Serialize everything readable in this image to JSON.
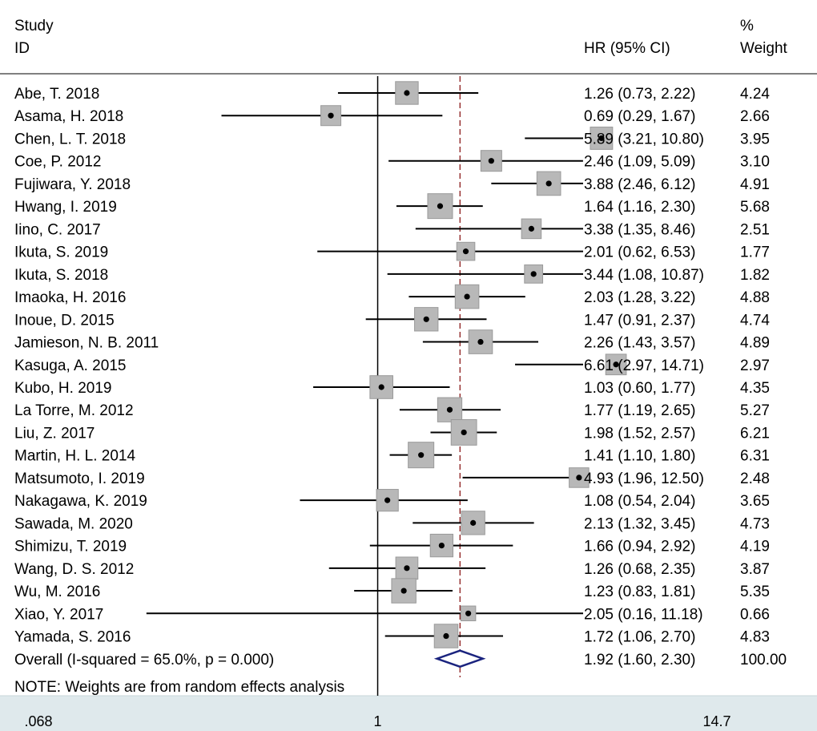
{
  "chart_data": {
    "type": "forest",
    "header": {
      "study_line1": "Study",
      "study_line2": "ID",
      "effect": "HR (95% CI)",
      "weight_line1": "%",
      "weight_line2": "Weight"
    },
    "studies": [
      {
        "id": "Abe, T. 2018",
        "hr": 1.26,
        "lo": 0.73,
        "hi": 2.22,
        "ci_text": "1.26 (0.73, 2.22)",
        "weight": "4.24"
      },
      {
        "id": "Asama, H. 2018",
        "hr": 0.69,
        "lo": 0.29,
        "hi": 1.67,
        "ci_text": "0.69 (0.29, 1.67)",
        "weight": "2.66"
      },
      {
        "id": "Chen, L. T. 2018",
        "hr": 5.89,
        "lo": 3.21,
        "hi": 10.8,
        "ci_text": "5.89 (3.21, 10.80)",
        "weight": "3.95"
      },
      {
        "id": "Coe, P. 2012",
        "hr": 2.46,
        "lo": 1.09,
        "hi": 5.09,
        "ci_text": "2.46 (1.09, 5.09)",
        "weight": "3.10"
      },
      {
        "id": "Fujiwara, Y. 2018",
        "hr": 3.88,
        "lo": 2.46,
        "hi": 6.12,
        "ci_text": "3.88 (2.46, 6.12)",
        "weight": "4.91"
      },
      {
        "id": "Hwang, I. 2019",
        "hr": 1.64,
        "lo": 1.16,
        "hi": 2.3,
        "ci_text": "1.64 (1.16, 2.30)",
        "weight": "5.68"
      },
      {
        "id": "Iino, C. 2017",
        "hr": 3.38,
        "lo": 1.35,
        "hi": 8.46,
        "ci_text": "3.38 (1.35, 8.46)",
        "weight": "2.51"
      },
      {
        "id": "Ikuta, S. 2019",
        "hr": 2.01,
        "lo": 0.62,
        "hi": 6.53,
        "ci_text": "2.01 (0.62, 6.53)",
        "weight": "1.77"
      },
      {
        "id": "Ikuta, S. 2018",
        "hr": 3.44,
        "lo": 1.08,
        "hi": 10.87,
        "ci_text": "3.44 (1.08, 10.87)",
        "weight": "1.82"
      },
      {
        "id": "Imaoka, H. 2016",
        "hr": 2.03,
        "lo": 1.28,
        "hi": 3.22,
        "ci_text": "2.03 (1.28, 3.22)",
        "weight": "4.88"
      },
      {
        "id": "Inoue, D. 2015",
        "hr": 1.47,
        "lo": 0.91,
        "hi": 2.37,
        "ci_text": "1.47 (0.91, 2.37)",
        "weight": "4.74"
      },
      {
        "id": "Jamieson, N. B. 2011",
        "hr": 2.26,
        "lo": 1.43,
        "hi": 3.57,
        "ci_text": "2.26 (1.43, 3.57)",
        "weight": "4.89"
      },
      {
        "id": "Kasuga, A. 2015",
        "hr": 6.61,
        "lo": 2.97,
        "hi": 14.71,
        "ci_text": "6.61 (2.97, 14.71)",
        "weight": "2.97"
      },
      {
        "id": "Kubo, H. 2019",
        "hr": 1.03,
        "lo": 0.6,
        "hi": 1.77,
        "ci_text": "1.03 (0.60, 1.77)",
        "weight": "4.35"
      },
      {
        "id": "La Torre, M. 2012",
        "hr": 1.77,
        "lo": 1.19,
        "hi": 2.65,
        "ci_text": "1.77 (1.19, 2.65)",
        "weight": "5.27"
      },
      {
        "id": "Liu, Z. 2017",
        "hr": 1.98,
        "lo": 1.52,
        "hi": 2.57,
        "ci_text": "1.98 (1.52, 2.57)",
        "weight": "6.21"
      },
      {
        "id": "Martin, H. L. 2014",
        "hr": 1.41,
        "lo": 1.1,
        "hi": 1.8,
        "ci_text": "1.41 (1.10, 1.80)",
        "weight": "6.31"
      },
      {
        "id": "Matsumoto, I. 2019",
        "hr": 4.93,
        "lo": 1.96,
        "hi": 12.5,
        "ci_text": "4.93 (1.96, 12.50)",
        "weight": "2.48"
      },
      {
        "id": "Nakagawa, K. 2019",
        "hr": 1.08,
        "lo": 0.54,
        "hi": 2.04,
        "ci_text": "1.08 (0.54, 2.04)",
        "weight": "3.65"
      },
      {
        "id": "Sawada, M. 2020",
        "hr": 2.13,
        "lo": 1.32,
        "hi": 3.45,
        "ci_text": "2.13 (1.32, 3.45)",
        "weight": "4.73"
      },
      {
        "id": "Shimizu, T. 2019",
        "hr": 1.66,
        "lo": 0.94,
        "hi": 2.92,
        "ci_text": "1.66 (0.94, 2.92)",
        "weight": "4.19"
      },
      {
        "id": "Wang, D. S. 2012",
        "hr": 1.26,
        "lo": 0.68,
        "hi": 2.35,
        "ci_text": "1.26 (0.68, 2.35)",
        "weight": "3.87"
      },
      {
        "id": "Wu, M. 2016",
        "hr": 1.23,
        "lo": 0.83,
        "hi": 1.81,
        "ci_text": "1.23 (0.83, 1.81)",
        "weight": "5.35"
      },
      {
        "id": "Xiao, Y. 2017",
        "hr": 2.05,
        "lo": 0.16,
        "hi": 11.18,
        "ci_text": "2.05 (0.16, 11.18)",
        "weight": "0.66"
      },
      {
        "id": "Yamada, S. 2016",
        "hr": 1.72,
        "lo": 1.06,
        "hi": 2.7,
        "ci_text": "1.72 (1.06, 2.70)",
        "weight": "4.83"
      }
    ],
    "overall": {
      "label": "Overall  (I-squared = 65.0%, p = 0.000)",
      "hr": 1.92,
      "lo": 1.6,
      "hi": 2.3,
      "ci_text": "1.92 (1.60, 2.30)",
      "weight": "100.00"
    },
    "note": "NOTE: Weights are from random effects analysis",
    "x_axis": {
      "scale": "log",
      "range": [
        0.068,
        14.7
      ],
      "ticks": [
        {
          "value": 0.068,
          "label": ".068"
        },
        {
          "value": 1,
          "label": "1"
        },
        {
          "value": 14.7,
          "label": "14.7"
        }
      ],
      "null_line": 1
    },
    "colors": {
      "box": "#b8b8b8",
      "box_border": "#9a9a9a",
      "overall_line": "#8b1a1a",
      "diamond": "#1a237e",
      "axis_band": "#dfe9ec"
    }
  }
}
